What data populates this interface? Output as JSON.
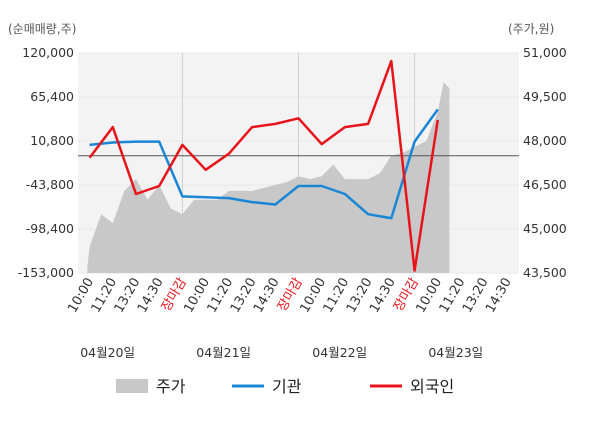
{
  "units": {
    "left": "(순매매량,주)",
    "right": "(주가,원)"
  },
  "colors": {
    "price": "#c8c8c8",
    "institution": "#1a87d4",
    "foreign": "#e8141c",
    "grid": "#e9e9e9",
    "plot_bg": "#f3f3f3",
    "baseline": "#555555",
    "close_label": "#e8141c"
  },
  "left_ticks": [
    "120,000",
    "65,400",
    "10,800",
    "-43,800",
    "-98,400",
    "-153,000"
  ],
  "right_ticks": [
    "51,000",
    "49,500",
    "48,000",
    "46,500",
    "45,000",
    "43,500"
  ],
  "dates": [
    "04월20일",
    "04월21일",
    "04월22일",
    "04월23일"
  ],
  "legend": [
    {
      "key": "price",
      "label": "주가"
    },
    {
      "key": "institution",
      "label": "기관"
    },
    {
      "key": "foreign",
      "label": "외국인"
    }
  ],
  "chart_data": {
    "type": "line",
    "title": "",
    "categories": [
      "10:00",
      "11:20",
      "13:20",
      "14:30",
      "장마감",
      "10:00",
      "11:20",
      "13:20",
      "14:30",
      "장마감",
      "10:00",
      "11:20",
      "13:20",
      "14:30",
      "장마감",
      "10:00",
      "11:20",
      "13:20",
      "14:30"
    ],
    "close_markers": [
      "장마감"
    ],
    "y_left": {
      "label": "(순매매량,주)",
      "range": [
        -153000,
        120000
      ]
    },
    "y_right": {
      "label": "(주가,원)",
      "range": [
        43500,
        51000
      ]
    },
    "series": [
      {
        "name": "기관",
        "axis": "left",
        "type": "line",
        "points": [
          [
            0,
            6000
          ],
          [
            1,
            9000
          ],
          [
            2,
            10000
          ],
          [
            3,
            10000
          ],
          [
            4,
            -58000
          ],
          [
            5,
            -59000
          ],
          [
            6,
            -60000
          ],
          [
            7,
            -65000
          ],
          [
            8,
            -68000
          ],
          [
            9,
            -45000
          ],
          [
            10,
            -45000
          ],
          [
            11,
            -55000
          ],
          [
            12,
            -80000
          ],
          [
            13,
            -85000
          ],
          [
            14,
            10000
          ],
          [
            15,
            50000
          ]
        ]
      },
      {
        "name": "외국인",
        "axis": "left",
        "type": "line",
        "points": [
          [
            0,
            -10000
          ],
          [
            1,
            28000
          ],
          [
            2,
            -55000
          ],
          [
            3,
            -45000
          ],
          [
            4,
            6000
          ],
          [
            5,
            -25000
          ],
          [
            6,
            -5000
          ],
          [
            7,
            28000
          ],
          [
            8,
            32000
          ],
          [
            9,
            39000
          ],
          [
            10,
            7000
          ],
          [
            11,
            28000
          ],
          [
            12,
            32000
          ],
          [
            13,
            110000
          ],
          [
            14,
            -150000
          ],
          [
            15,
            37000
          ]
        ]
      },
      {
        "name": "주가",
        "axis": "right",
        "type": "area",
        "points": [
          [
            -0.1,
            43700
          ],
          [
            0,
            44400
          ],
          [
            0.5,
            45500
          ],
          [
            1,
            45200
          ],
          [
            1.5,
            46300
          ],
          [
            2,
            46700
          ],
          [
            2.5,
            46000
          ],
          [
            3,
            46500
          ],
          [
            3.5,
            45700
          ],
          [
            4,
            45500
          ],
          [
            4.5,
            46000
          ],
          [
            5,
            46000
          ],
          [
            5.5,
            46000
          ],
          [
            6,
            46300
          ],
          [
            6.5,
            46300
          ],
          [
            7,
            46300
          ],
          [
            7.5,
            46400
          ],
          [
            8,
            46500
          ],
          [
            8.5,
            46600
          ],
          [
            9,
            46800
          ],
          [
            9.5,
            46700
          ],
          [
            10,
            46800
          ],
          [
            10.5,
            47200
          ],
          [
            11,
            46700
          ],
          [
            11.5,
            46700
          ],
          [
            12,
            46700
          ],
          [
            12.5,
            46900
          ],
          [
            13,
            47500
          ],
          [
            13.5,
            47600
          ],
          [
            14,
            47800
          ],
          [
            14.5,
            48000
          ],
          [
            15,
            49000
          ],
          [
            15.25,
            50000
          ],
          [
            15.5,
            49800
          ]
        ]
      }
    ]
  }
}
